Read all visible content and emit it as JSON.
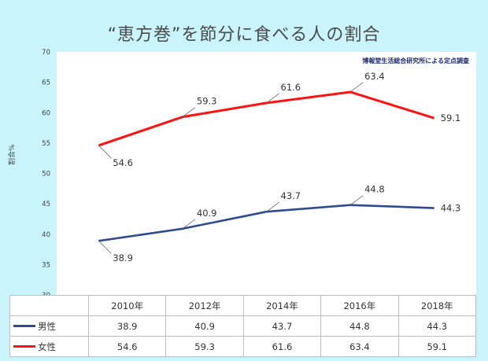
{
  "title": "“恵方巻”を節分に食べる人の割合",
  "ylabel": "割合%",
  "source_note": "博報堂生活総合研究所による定点調査",
  "chart_data": {
    "type": "line",
    "title": "“恵方巻”を節分に食べる人の割合",
    "ylabel": "割合%",
    "ylim": [
      30,
      70
    ],
    "yticks": [
      30,
      35,
      40,
      45,
      50,
      55,
      60,
      65,
      70
    ],
    "categories": [
      "2010年",
      "2012年",
      "2014年",
      "2016年",
      "2018年"
    ],
    "grid": false,
    "legend": "data table",
    "series": [
      {
        "name": "男性",
        "color": "#2e4c8f",
        "values": [
          38.9,
          40.9,
          43.7,
          44.8,
          44.3
        ]
      },
      {
        "name": "女性",
        "color": "#ff1111",
        "values": [
          54.6,
          59.3,
          61.6,
          63.4,
          59.1
        ]
      }
    ]
  }
}
